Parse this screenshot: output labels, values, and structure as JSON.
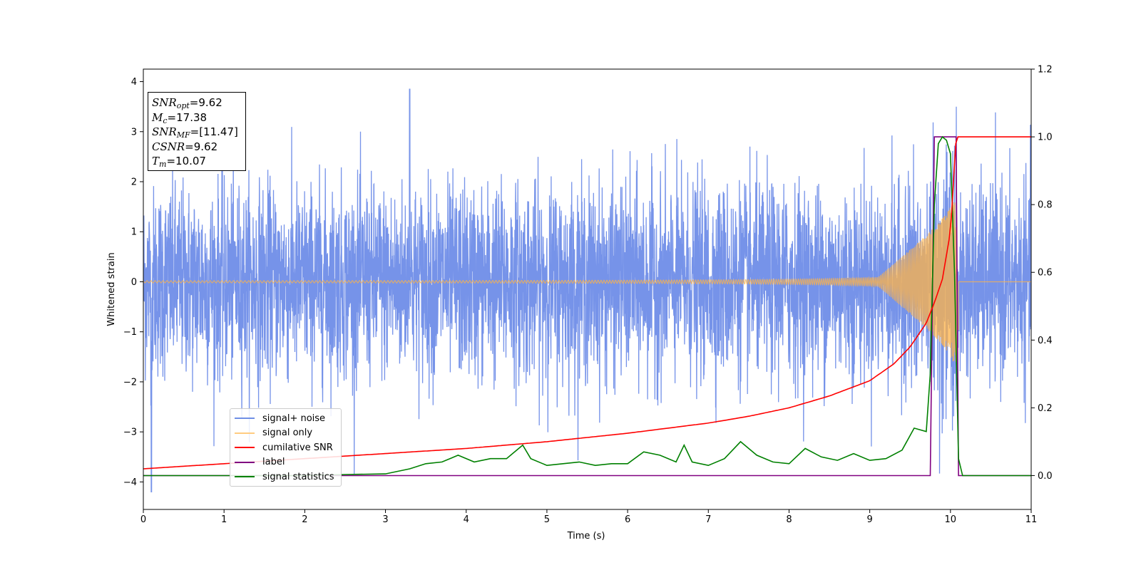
{
  "chart_data": {
    "type": "line",
    "xlabel": "Time (s)",
    "ylabel": "Whitened strain",
    "xlim": [
      0,
      11
    ],
    "ylim": [
      -4.55,
      4.25
    ],
    "y2lim": [
      -0.1,
      1.2
    ],
    "xticks": [
      "0",
      "1",
      "2",
      "3",
      "4",
      "5",
      "6",
      "7",
      "8",
      "9",
      "10",
      "11"
    ],
    "yticks": [
      "4",
      "3",
      "2",
      "1",
      "0",
      "−1",
      "−2",
      "−3",
      "−4"
    ],
    "y2ticks": [
      "1.2",
      "1.0",
      "0.8",
      "0.6",
      "0.4",
      "0.2",
      "0.0"
    ],
    "legend": {
      "placement": "lower-left",
      "entries": [
        {
          "label": "signal+ noise",
          "color": "#4169e1"
        },
        {
          "label": "signal only",
          "color": "#ffb347"
        },
        {
          "label": "cumilative SNR",
          "color": "#ff0000"
        },
        {
          "label": "label",
          "color": "#800080"
        },
        {
          "label": "signal statistics",
          "color": "#008000"
        }
      ]
    },
    "annotation": {
      "snr_opt": "9.62",
      "mc": "17.38",
      "snr_mf": "[11.47]",
      "csnr": "9.62",
      "tm": "10.07"
    },
    "series": [
      {
        "name": "signal+ noise",
        "axis": "left",
        "color": "#4169e1",
        "description_values": {
          "std": 0.95,
          "min": -4.2,
          "max": 3.85,
          "peak_at": 3.3
        }
      },
      {
        "name": "signal only",
        "axis": "left",
        "color": "#ffb347",
        "chirp": {
          "start_amp": 0.02,
          "peak_amp": 1.6,
          "merger_time": 10.07,
          "end_time": 10.1
        }
      },
      {
        "name": "cumilative SNR",
        "axis": "right",
        "color": "#ff0000",
        "x": [
          0,
          1,
          2,
          3,
          4,
          5,
          6,
          7,
          7.5,
          8,
          8.5,
          9,
          9.3,
          9.5,
          9.7,
          9.8,
          9.9,
          10.0,
          10.07,
          11
        ],
        "y": [
          0.02,
          0.035,
          0.05,
          0.065,
          0.08,
          0.1,
          0.125,
          0.155,
          0.175,
          0.2,
          0.235,
          0.28,
          0.33,
          0.38,
          0.45,
          0.51,
          0.58,
          0.72,
          1.0,
          1.0
        ]
      },
      {
        "name": "label",
        "axis": "right",
        "color": "#800080",
        "x": [
          0,
          9.75,
          9.8,
          10.07,
          10.1,
          11
        ],
        "y": [
          0,
          0,
          1,
          1,
          0,
          0
        ]
      },
      {
        "name": "signal statistics",
        "axis": "right",
        "color": "#008000",
        "x": [
          0,
          1,
          2,
          2.5,
          3,
          3.3,
          3.5,
          3.7,
          3.9,
          4.1,
          4.3,
          4.5,
          4.7,
          4.8,
          5.0,
          5.2,
          5.4,
          5.6,
          5.8,
          6.0,
          6.2,
          6.4,
          6.6,
          6.7,
          6.8,
          7.0,
          7.2,
          7.4,
          7.6,
          7.8,
          8.0,
          8.2,
          8.4,
          8.6,
          8.8,
          9.0,
          9.2,
          9.4,
          9.55,
          9.7,
          9.75,
          9.8,
          9.85,
          9.9,
          9.95,
          10.0,
          10.05,
          10.1,
          10.15,
          11
        ],
        "y": [
          0,
          0.0,
          0.0,
          0.003,
          0.005,
          0.02,
          0.035,
          0.04,
          0.06,
          0.04,
          0.05,
          0.05,
          0.09,
          0.05,
          0.03,
          0.035,
          0.04,
          0.03,
          0.035,
          0.035,
          0.07,
          0.06,
          0.04,
          0.09,
          0.04,
          0.03,
          0.05,
          0.1,
          0.06,
          0.04,
          0.035,
          0.08,
          0.055,
          0.045,
          0.065,
          0.045,
          0.05,
          0.075,
          0.14,
          0.13,
          0.3,
          0.8,
          0.98,
          1.0,
          0.99,
          0.95,
          0.6,
          0.05,
          0.0,
          0.0
        ]
      }
    ]
  }
}
